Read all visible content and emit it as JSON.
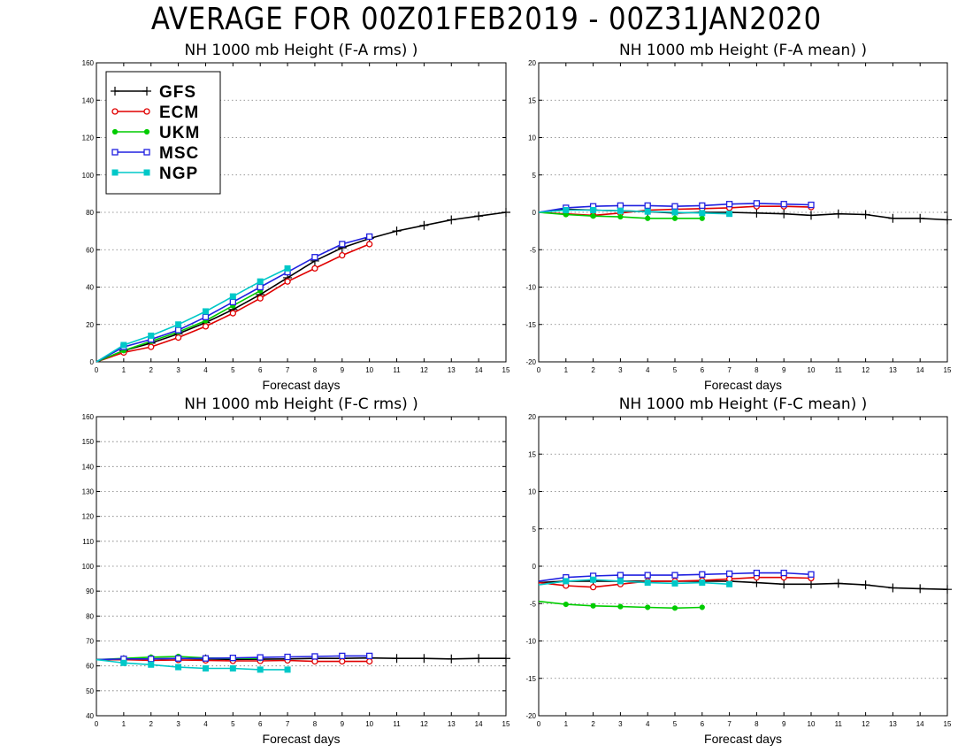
{
  "title": "AVERAGE FOR 00Z01FEB2019 - 00Z31JAN2020",
  "legend": {
    "entries": [
      {
        "name": "GFS",
        "color": "#000000",
        "marker": "plus"
      },
      {
        "name": "ECM",
        "color": "#e00000",
        "marker": "circle"
      },
      {
        "name": "UKM",
        "color": "#00cc00",
        "marker": "dot"
      },
      {
        "name": "MSC",
        "color": "#2020e0",
        "marker": "square"
      },
      {
        "name": "NGP",
        "color": "#00c8c8",
        "marker": "filled-square"
      }
    ]
  },
  "chart_data": [
    {
      "type": "line",
      "title": "NH 1000 mb Height (F-A rms) )",
      "xlabel": "Forecast days",
      "xlim": [
        0,
        15
      ],
      "ylim": [
        0,
        160
      ],
      "yticks": [
        0,
        20,
        40,
        60,
        80,
        100,
        120,
        140,
        160
      ],
      "grid": true,
      "legend": "top-left",
      "series": [
        {
          "name": "GFS",
          "x": [
            0,
            1,
            2,
            3,
            4,
            5,
            6,
            7,
            8,
            9,
            10,
            11,
            12,
            13,
            14,
            15
          ],
          "values": [
            0,
            6,
            10,
            15,
            21,
            28,
            36,
            45,
            54,
            61,
            66,
            70,
            73,
            76,
            78,
            80
          ]
        },
        {
          "name": "ECM",
          "x": [
            0,
            1,
            2,
            3,
            4,
            5,
            6,
            7,
            8,
            9,
            10
          ],
          "values": [
            0,
            5,
            8,
            13,
            19,
            26,
            34,
            43,
            50,
            57,
            63
          ]
        },
        {
          "name": "UKM",
          "x": [
            0,
            1,
            2,
            3,
            4,
            5,
            6
          ],
          "values": [
            0,
            6,
            11,
            16,
            22,
            30,
            38
          ]
        },
        {
          "name": "MSC",
          "x": [
            0,
            1,
            2,
            3,
            4,
            5,
            6,
            7,
            8,
            9,
            10
          ],
          "values": [
            0,
            8,
            12,
            17,
            24,
            32,
            40,
            48,
            56,
            63,
            67
          ]
        },
        {
          "name": "NGP",
          "x": [
            0,
            1,
            2,
            3,
            4,
            5,
            6,
            7
          ],
          "values": [
            0,
            9,
            14,
            20,
            27,
            35,
            43,
            50
          ]
        }
      ]
    },
    {
      "type": "line",
      "title": "NH 1000 mb Height (F-A mean) )",
      "xlabel": "Forecast days",
      "xlim": [
        0,
        15
      ],
      "ylim": [
        -20,
        20
      ],
      "yticks": [
        -20,
        -15,
        -10,
        -5,
        0,
        5,
        10,
        15,
        20
      ],
      "grid": true,
      "series": [
        {
          "name": "GFS",
          "x": [
            0,
            1,
            2,
            3,
            4,
            5,
            6,
            7,
            8,
            9,
            10,
            11,
            12,
            13,
            14,
            15
          ],
          "values": [
            0,
            0.4,
            0.3,
            0.2,
            0.1,
            -0.1,
            0,
            0,
            -0.1,
            -0.2,
            -0.4,
            -0.2,
            -0.3,
            -0.8,
            -0.8,
            -1.0
          ]
        },
        {
          "name": "ECM",
          "x": [
            0,
            1,
            2,
            3,
            4,
            5,
            6,
            7,
            8,
            9,
            10
          ],
          "values": [
            0,
            -0.2,
            -0.4,
            -0.1,
            0.3,
            0.4,
            0.5,
            0.6,
            0.8,
            0.8,
            0.7
          ]
        },
        {
          "name": "UKM",
          "x": [
            0,
            1,
            2,
            3,
            4,
            5,
            6
          ],
          "values": [
            0,
            -0.3,
            -0.5,
            -0.6,
            -0.8,
            -0.8,
            -0.8
          ]
        },
        {
          "name": "MSC",
          "x": [
            0,
            1,
            2,
            3,
            4,
            5,
            6,
            7,
            8,
            9,
            10
          ],
          "values": [
            0,
            0.6,
            0.8,
            0.9,
            0.9,
            0.8,
            0.9,
            1.1,
            1.2,
            1.1,
            1.0
          ]
        },
        {
          "name": "NGP",
          "x": [
            0,
            1,
            2,
            3,
            4,
            5,
            6,
            7
          ],
          "values": [
            0,
            0.3,
            0.3,
            0.2,
            0.1,
            0,
            -0.1,
            -0.2
          ]
        }
      ]
    },
    {
      "type": "line",
      "title": "NH 1000 mb Height (F-C rms) )",
      "xlabel": "Forecast days",
      "xlim": [
        0,
        15
      ],
      "ylim": [
        40,
        160
      ],
      "yticks": [
        40,
        50,
        60,
        70,
        80,
        90,
        100,
        110,
        120,
        130,
        140,
        150,
        160
      ],
      "grid": true,
      "series": [
        {
          "name": "GFS",
          "x": [
            0,
            1,
            2,
            3,
            4,
            5,
            6,
            7,
            8,
            9,
            10,
            11,
            12,
            13,
            14,
            15
          ],
          "values": [
            62.5,
            62.5,
            62.8,
            63,
            62.8,
            62.6,
            62.7,
            62.8,
            63,
            63,
            63.2,
            63,
            63,
            62.8,
            63,
            63
          ]
        },
        {
          "name": "ECM",
          "x": [
            0,
            1,
            2,
            3,
            4,
            5,
            6,
            7,
            8,
            9,
            10
          ],
          "values": [
            62.5,
            62.5,
            62.2,
            62.4,
            62.2,
            62,
            62,
            62.2,
            61.8,
            61.8,
            61.8
          ]
        },
        {
          "name": "UKM",
          "x": [
            0,
            1,
            2,
            3,
            4,
            5,
            6
          ],
          "values": [
            62.5,
            63,
            63.5,
            63.8,
            63.2,
            63,
            63
          ]
        },
        {
          "name": "MSC",
          "x": [
            0,
            1,
            2,
            3,
            4,
            5,
            6,
            7,
            8,
            9,
            10
          ],
          "values": [
            62.5,
            62.8,
            62.8,
            63,
            63,
            63.2,
            63.4,
            63.6,
            63.8,
            64,
            64
          ]
        },
        {
          "name": "NGP",
          "x": [
            0,
            1,
            2,
            3,
            4,
            5,
            6,
            7
          ],
          "values": [
            62.5,
            61.2,
            60.5,
            59.5,
            59,
            59,
            58.5,
            58.5
          ]
        }
      ]
    },
    {
      "type": "line",
      "title": "NH 1000 mb Height (F-C mean) )",
      "xlabel": "Forecast days",
      "xlim": [
        0,
        15
      ],
      "ylim": [
        -20,
        20
      ],
      "yticks": [
        -20,
        -15,
        -10,
        -5,
        0,
        5,
        10,
        15,
        20
      ],
      "grid": true,
      "series": [
        {
          "name": "GFS",
          "x": [
            0,
            1,
            2,
            3,
            4,
            5,
            6,
            7,
            8,
            9,
            10,
            11,
            12,
            13,
            14,
            15
          ],
          "values": [
            -2.2,
            -2,
            -2,
            -2,
            -2,
            -2,
            -2,
            -2,
            -2.2,
            -2.4,
            -2.4,
            -2.3,
            -2.5,
            -2.9,
            -3,
            -3.1
          ]
        },
        {
          "name": "ECM",
          "x": [
            0,
            1,
            2,
            3,
            4,
            5,
            6,
            7,
            8,
            9,
            10
          ],
          "values": [
            -2.2,
            -2.6,
            -2.8,
            -2.4,
            -2,
            -2,
            -1.9,
            -1.7,
            -1.5,
            -1.5,
            -1.6
          ]
        },
        {
          "name": "UKM",
          "x": [
            0,
            1,
            2,
            3,
            4,
            5,
            6
          ],
          "values": [
            -4.7,
            -5.1,
            -5.3,
            -5.4,
            -5.5,
            -5.6,
            -5.5
          ]
        },
        {
          "name": "MSC",
          "x": [
            0,
            1,
            2,
            3,
            4,
            5,
            6,
            7,
            8,
            9,
            10
          ],
          "values": [
            -2,
            -1.5,
            -1.3,
            -1.2,
            -1.2,
            -1.2,
            -1.1,
            -1,
            -0.9,
            -0.9,
            -1.1
          ]
        },
        {
          "name": "NGP",
          "x": [
            0,
            1,
            2,
            3,
            4,
            5,
            6,
            7
          ],
          "values": [
            -2.5,
            -2,
            -1.8,
            -2,
            -2.2,
            -2.3,
            -2.2,
            -2.4
          ]
        }
      ]
    }
  ]
}
